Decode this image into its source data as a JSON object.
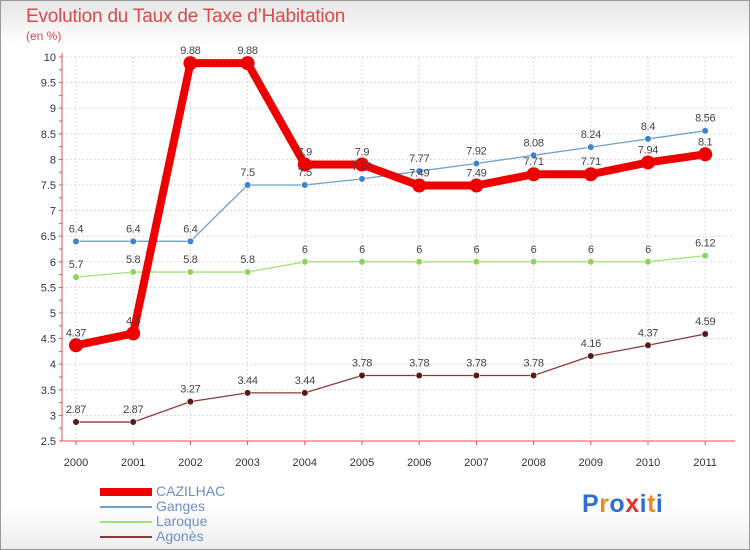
{
  "title": "Evolution du Taux de Taxe d’Habitation",
  "unit_label": "(en %)",
  "logo": {
    "letters": [
      "P",
      "r",
      "o",
      "x",
      "i",
      "t",
      "i"
    ],
    "colors": [
      "#2f6fd0",
      "#e58b1f",
      "#2f6fd0",
      "#e3312b",
      "#2f6fd0",
      "#e58b1f",
      "#2f6fd0"
    ]
  },
  "chart_data": {
    "type": "line",
    "x": [
      "2000",
      "2001",
      "2002",
      "2003",
      "2004",
      "2005",
      "2006",
      "2007",
      "2008",
      "2009",
      "2010",
      "2011"
    ],
    "ylim": [
      2.5,
      10
    ],
    "yticks": [
      "2.5",
      "3",
      "3.5",
      "4",
      "4.5",
      "5",
      "5.5",
      "6",
      "6.5",
      "7",
      "7.5",
      "8",
      "8.5",
      "9",
      "9.5",
      "10"
    ],
    "grid": true,
    "legend_position": "bottom-left",
    "series": [
      {
        "name": "CAZILHAC",
        "color": "#ee0000",
        "emphasis": true,
        "values": [
          4.37,
          4.6,
          9.88,
          9.88,
          7.9,
          7.9,
          7.49,
          7.49,
          7.71,
          7.71,
          7.94,
          8.1
        ],
        "labels": [
          "4.37",
          "4.6",
          "9.88",
          "9.88",
          "7.9",
          "7.9",
          "7.49",
          "7.49",
          "7.71",
          "7.71",
          "7.94",
          "8.1"
        ]
      },
      {
        "name": "Ganges",
        "color": "#6fa0d0",
        "marker": "#3f82cc",
        "values": [
          6.4,
          6.4,
          6.4,
          7.5,
          7.5,
          7.62,
          7.77,
          7.92,
          8.08,
          8.24,
          8.4,
          8.56
        ],
        "labels": [
          "6.4",
          "6.4",
          "6.4",
          "7.5",
          "7.5",
          "7.62",
          "7.77",
          "7.92",
          "8.08",
          "8.24",
          "8.4",
          "8.56"
        ]
      },
      {
        "name": "Laroque",
        "color": "#a6e07a",
        "marker": "#8cd45a",
        "values": [
          5.7,
          5.8,
          5.8,
          5.8,
          6,
          6,
          6,
          6,
          6,
          6,
          6,
          6.12
        ],
        "labels": [
          "5.7",
          "5.8",
          "5.8",
          "5.8",
          "6",
          "6",
          "6",
          "6",
          "6",
          "6",
          "6",
          "6.12"
        ]
      },
      {
        "name": "Agonès",
        "color": "#8a3a3a",
        "marker": "#5a1818",
        "values": [
          2.87,
          2.87,
          3.27,
          3.44,
          3.44,
          3.78,
          3.78,
          3.78,
          3.78,
          4.16,
          4.37,
          4.59
        ],
        "labels": [
          "2.87",
          "2.87",
          "3.27",
          "3.44",
          "3.44",
          "3.78",
          "3.78",
          "3.78",
          "3.78",
          "4.16",
          "4.37",
          "4.59"
        ]
      }
    ]
  }
}
